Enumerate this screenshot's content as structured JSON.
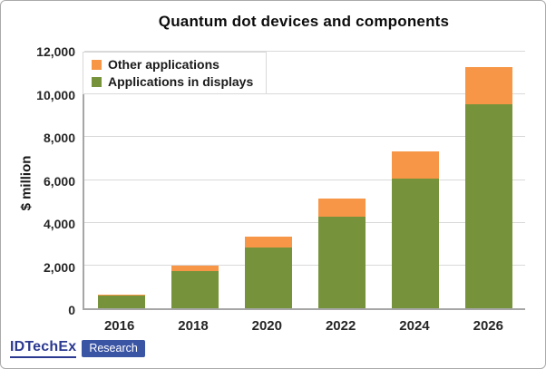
{
  "chart_data": {
    "type": "bar",
    "stacked": true,
    "title": "Quantum dot devices and components",
    "xlabel": "",
    "ylabel": "$ million",
    "categories": [
      "2016",
      "2018",
      "2020",
      "2022",
      "2024",
      "2026"
    ],
    "series": [
      {
        "name": "Applications in displays",
        "color": "#76933C",
        "values": [
          600,
          1750,
          2850,
          4300,
          6050,
          9550
        ]
      },
      {
        "name": "Other applications",
        "color": "#F79646",
        "values": [
          30,
          250,
          500,
          850,
          1300,
          1750
        ]
      }
    ],
    "totals": [
      630,
      2000,
      3350,
      5150,
      7350,
      11300
    ],
    "ylim": [
      0,
      12000
    ],
    "ytick_step": 2000,
    "ytick_labels": [
      "0",
      "2,000",
      "4,000",
      "6,000",
      "8,000",
      "10,000",
      "12,000"
    ],
    "grid": true,
    "legend_position": "top-left",
    "legend_order": [
      "Other applications",
      "Applications in displays"
    ]
  },
  "logo": {
    "brand": "IDTechEx",
    "sub": "Research",
    "brand_color": "#2B3990",
    "badge_color": "#3B55A5"
  }
}
